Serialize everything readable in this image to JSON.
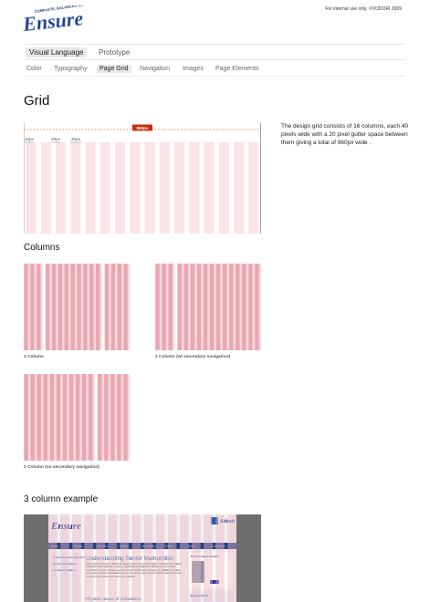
{
  "header": {
    "logo_text": "Ensure",
    "logo_tagline": "COMPLETE, BALANCED NUTRITION",
    "notice": "For internal use only. ©VODORI 2009"
  },
  "primary_nav": [
    {
      "label": "Visual Language",
      "active": true
    },
    {
      "label": "Prototype",
      "active": false
    }
  ],
  "secondary_nav": [
    {
      "label": "Color",
      "active": false
    },
    {
      "label": "Typography",
      "active": false
    },
    {
      "label": "Page Grid",
      "active": true
    },
    {
      "label": "Navigation",
      "active": false
    },
    {
      "label": "Images",
      "active": false
    },
    {
      "label": "Page Elements",
      "active": false
    }
  ],
  "grid_section": {
    "title": "Grid",
    "width_badge": "960px",
    "col_label": "10px",
    "gutter_label": "20px",
    "col_width_label": "40px",
    "column_count": 16,
    "description": "The design grid consists of 16 columns, each 40 pixels wide with a 20 pixel gutter space between them giving a total of 960px wide ."
  },
  "columns_section": {
    "title": "Columns",
    "layouts": [
      {
        "label": "3 Column",
        "groups": [
          3,
          9,
          4
        ]
      },
      {
        "label": "2 Column  (w/ secondary navigation)",
        "groups": [
          3,
          13
        ]
      },
      {
        "label": "2 Column  (no secondary navigation)",
        "groups": [
          11,
          5
        ]
      }
    ]
  },
  "example_section": {
    "title": "3 column example",
    "site_logo": "Ensure",
    "brand": "Abbott",
    "nav_items": [
      "Nutrition",
      "Recovery",
      "Senior Care",
      "Lifestyle",
      "Ask an Expert",
      "Products",
      "Reviews",
      "Ensure Savings"
    ],
    "side_links": [
      "Understanding Senior Malnutrition",
      "Exercise: Getting Started",
      "Age-Related Conditions"
    ],
    "article_title": "Understanding Senior Malnutrition",
    "article_body": "Eating well can become difficult for seniors when age-related health conditions and medical treatments affect appetite, chewing, swallowing and digestion. Identifying and treating malnutrition early is crucial to your loved one's health and well-being. In addition to making sure proper nutrition is available, keep an eye out for signs of poor nutrition and discuss any concerns with doctors and other care providers.",
    "article_subhead": "Physical causes of malnutrition:",
    "right_title": "Find the Right Ensure®",
    "right_footer": "Keep it Fresh"
  }
}
